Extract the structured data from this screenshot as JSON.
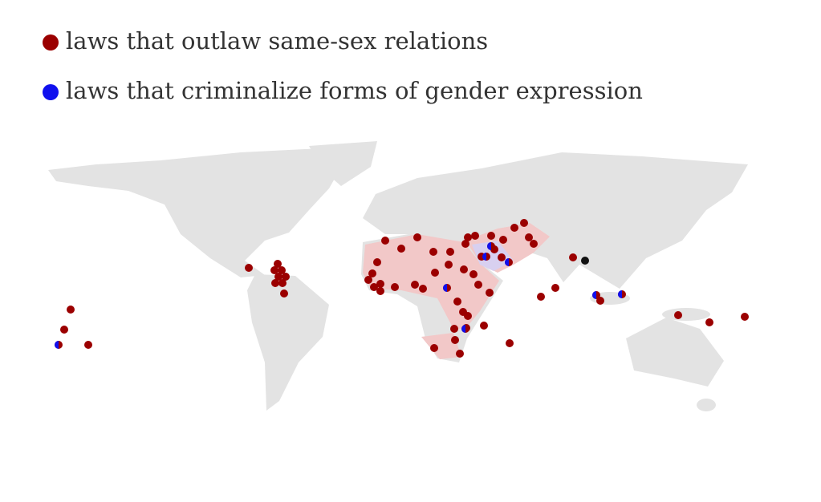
{
  "legend": {
    "items": [
      {
        "label": "laws that outlaw same-sex relations",
        "color": "#9b0000"
      },
      {
        "label": "laws that criminalize forms of gender expression",
        "color": "#1010ee"
      }
    ]
  }
}
